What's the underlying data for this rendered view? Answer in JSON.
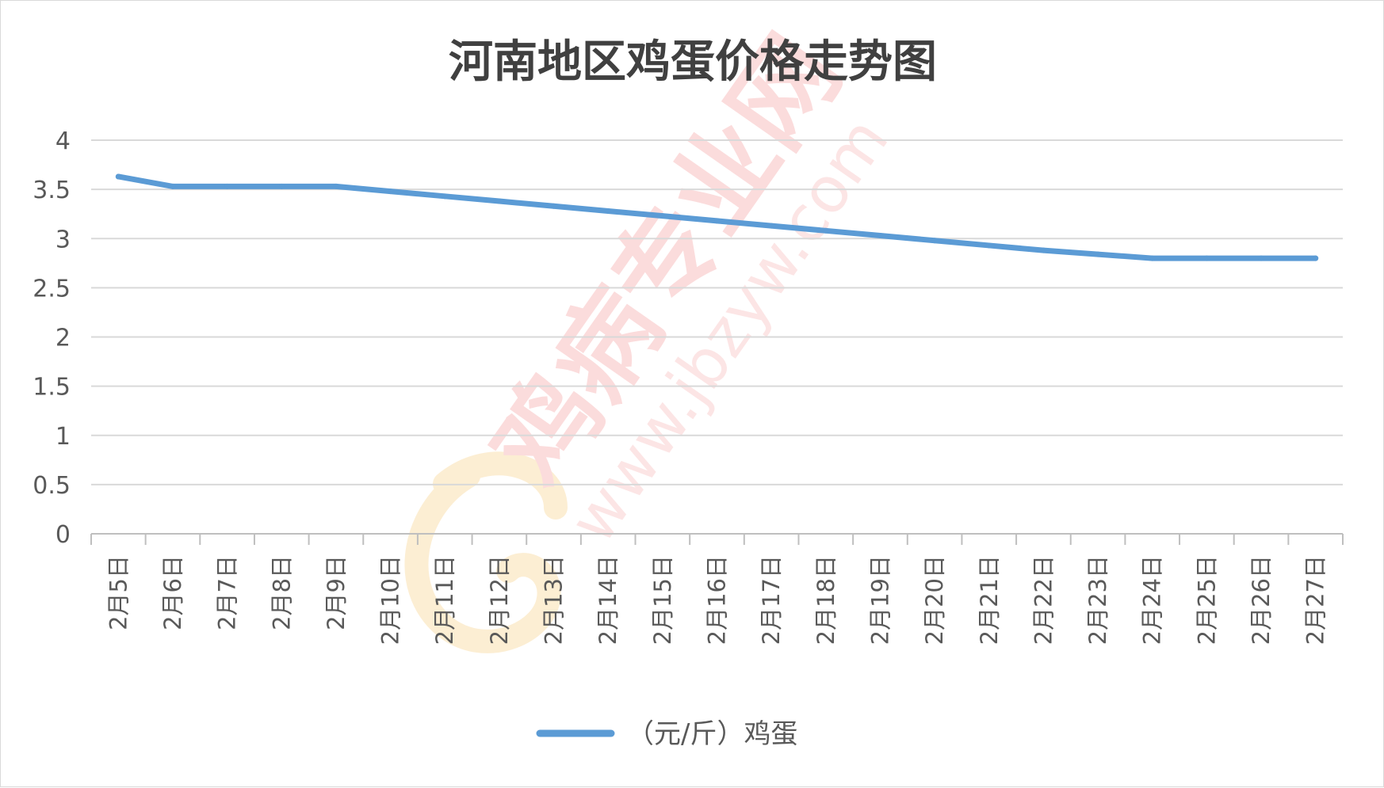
{
  "chart_data": {
    "type": "line",
    "title": "河南地区鸡蛋价格走势图",
    "categories": [
      "2月5日",
      "2月6日",
      "2月7日",
      "2月8日",
      "2月9日",
      "2月10日",
      "2月11日",
      "2月12日",
      "2月13日",
      "2月14日",
      "2月15日",
      "2月16日",
      "2月17日",
      "2月18日",
      "2月19日",
      "2月20日",
      "2月21日",
      "2月22日",
      "2月23日",
      "2月24日",
      "2月25日",
      "2月26日",
      "2月27日"
    ],
    "series": [
      {
        "name": "（元/斤）鸡蛋",
        "color": "#5b9bd5",
        "values": [
          3.63,
          3.53,
          3.53,
          3.53,
          3.53,
          3.48,
          3.43,
          3.38,
          3.33,
          3.28,
          3.23,
          3.18,
          3.13,
          3.08,
          3.03,
          2.98,
          2.93,
          2.88,
          2.84,
          2.8,
          2.8,
          2.8,
          2.8
        ]
      }
    ],
    "ylim": [
      0,
      4
    ],
    "yticks": [
      "0",
      "0.5",
      "1",
      "1.5",
      "2",
      "2.5",
      "3",
      "3.5",
      "4"
    ],
    "grid": true,
    "legend_position": "bottom"
  },
  "watermark": {
    "brand": "鸡病专业网",
    "url": "www.jbzyw.com",
    "color": "#f08080"
  }
}
